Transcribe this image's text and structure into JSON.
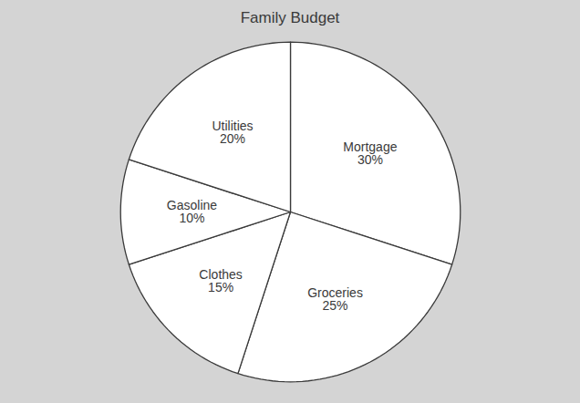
{
  "chart_data": {
    "type": "pie",
    "title": "Family Budget",
    "categories": [
      "Mortgage\n30%",
      "Groceries\n25%",
      "Clothes\n15%",
      "Gasoline\n10%",
      "Utilities\n20%"
    ],
    "values": [
      30,
      25,
      15,
      10,
      20
    ],
    "color": "#ffffff"
  }
}
